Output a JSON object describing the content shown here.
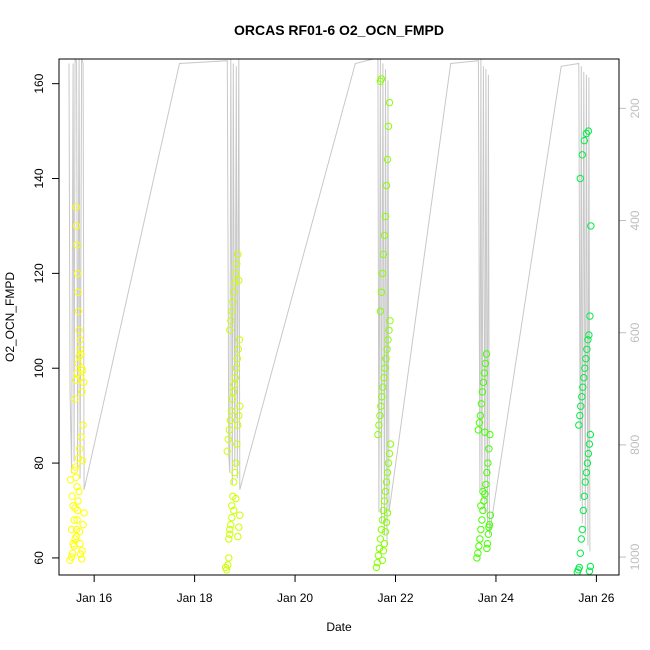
{
  "chart_data": {
    "type": "scatter",
    "title": "ORCAS RF01-6 O2_OCN_FMPD",
    "xlabel": "Date",
    "ylabel": "O2_OCN_FMPD",
    "x_ticks": [
      {
        "value": 16,
        "label": "Jan 16"
      },
      {
        "value": 18,
        "label": "Jan 18"
      },
      {
        "value": 20,
        "label": "Jan 20"
      },
      {
        "value": 22,
        "label": "Jan 22"
      },
      {
        "value": 24,
        "label": "Jan 24"
      },
      {
        "value": 26,
        "label": "Jan 26"
      }
    ],
    "y_ticks": [
      60,
      80,
      100,
      120,
      140,
      160
    ],
    "y2_ticks": [
      200,
      400,
      600,
      800,
      1000
    ],
    "xlim": [
      15.3,
      26.45
    ],
    "ylim": [
      56.4,
      165.2
    ],
    "y2lim": [
      1032,
      112
    ],
    "series": [
      {
        "color": "#ffff00",
        "x": [
          15.52,
          15.55,
          15.57,
          15.6,
          15.62,
          15.65,
          15.66,
          15.67,
          15.68,
          15.7,
          15.71,
          15.72,
          15.73,
          15.75,
          15.76,
          15.78,
          15.8,
          15.53,
          15.56,
          15.58,
          15.61,
          15.63,
          15.64,
          15.66,
          15.69,
          15.71,
          15.74,
          15.77,
          15.62,
          15.64,
          15.66,
          15.68,
          15.7,
          15.72,
          15.73,
          15.75,
          15.77,
          15.79,
          15.64,
          15.65,
          15.66,
          15.67,
          15.68,
          15.69,
          15.7,
          15.72,
          15.74,
          15.76,
          15.78,
          15.55,
          15.58,
          15.6,
          15.62,
          15.65
        ],
        "y": [
          59.5,
          60.2,
          61.0,
          62.5,
          64.0,
          66.0,
          68.0,
          70.0,
          72.0,
          74.0,
          65.5,
          63.0,
          60.8,
          59.8,
          61.5,
          67.0,
          69.5,
          76.5,
          73.0,
          71.0,
          78.5,
          79.2,
          77.0,
          75.0,
          81.0,
          83.0,
          85.5,
          80.5,
          93.5,
          97.5,
          99.0,
          101.0,
          102.5,
          104.0,
          98.0,
          100.0,
          99.5,
          97.0,
          134.0,
          130.0,
          126.0,
          120.0,
          116.0,
          112.0,
          108.0,
          106.0,
          103.0,
          95.0,
          88.0,
          66.0,
          63.0,
          68.0,
          70.5,
          64.5
        ]
      },
      {
        "color": "#ccff00",
        "x": [
          18.62,
          18.64,
          18.66,
          18.68,
          18.7,
          18.72,
          18.74,
          18.76,
          18.78,
          18.8,
          18.82,
          18.84,
          18.86,
          18.88,
          18.9,
          18.65,
          18.67,
          18.69,
          18.71,
          18.73,
          18.75,
          18.77,
          18.79,
          18.81,
          18.83,
          18.85,
          18.87,
          18.89,
          18.7,
          18.72,
          18.74,
          18.76,
          18.78,
          18.8,
          18.82,
          18.84,
          18.86,
          18.88,
          18.68,
          18.7,
          18.74,
          18.78,
          18.82,
          18.86,
          18.88,
          18.9
        ],
        "y": [
          58.0,
          57.5,
          58.5,
          60.0,
          65.0,
          67.0,
          71.0,
          73.0,
          76.0,
          78.0,
          80.0,
          84.0,
          88.0,
          90.0,
          92.0,
          82.5,
          85.0,
          87.0,
          89.0,
          91.0,
          93.5,
          95.0,
          96.5,
          98.0,
          100.0,
          102.0,
          104.0,
          106.0,
          108.0,
          110.0,
          112.0,
          114.0,
          116.0,
          118.0,
          120.0,
          122.0,
          124.0,
          118.5,
          64.0,
          66.0,
          68.5,
          70.0,
          72.5,
          64.5,
          66.5,
          69.0
        ]
      },
      {
        "color": "#88ff00",
        "x": [
          21.62,
          21.64,
          21.66,
          21.68,
          21.7,
          21.72,
          21.74,
          21.76,
          21.78,
          21.8,
          21.82,
          21.84,
          21.86,
          21.88,
          21.9,
          21.65,
          21.67,
          21.69,
          21.71,
          21.73,
          21.75,
          21.77,
          21.79,
          21.81,
          21.83,
          21.85,
          21.87,
          21.89,
          21.7,
          21.72,
          21.74,
          21.76,
          21.78,
          21.8,
          21.82,
          21.84,
          21.86,
          21.88,
          21.7,
          21.72,
          21.74,
          21.76,
          21.78,
          21.8,
          21.82,
          21.84
        ],
        "y": [
          58.0,
          59.0,
          60.5,
          62.0,
          64.0,
          66.0,
          68.0,
          70.0,
          72.0,
          74.0,
          76.0,
          78.0,
          80.0,
          82.0,
          84.0,
          86.0,
          88.0,
          90.0,
          92.0,
          94.0,
          96.0,
          98.0,
          100.0,
          102.0,
          104.0,
          106.0,
          108.0,
          110.0,
          112.0,
          116.0,
          120.0,
          124.0,
          128.0,
          132.0,
          138.5,
          144.0,
          151.0,
          156.0,
          160.5,
          161.0,
          59.5,
          61.5,
          63.0,
          65.5,
          67.5,
          69.5
        ]
      },
      {
        "color": "#44ff00",
        "x": [
          23.62,
          23.64,
          23.66,
          23.68,
          23.7,
          23.72,
          23.74,
          23.76,
          23.78,
          23.8,
          23.82,
          23.84,
          23.86,
          23.88,
          23.65,
          23.67,
          23.69,
          23.71,
          23.73,
          23.75,
          23.77,
          23.79,
          23.81,
          23.83,
          23.85,
          23.87,
          23.89,
          23.7,
          23.74,
          23.78,
          23.82,
          23.86
        ],
        "y": [
          60.0,
          61.0,
          62.5,
          64.0,
          66.0,
          68.0,
          70.0,
          72.0,
          73.5,
          75.5,
          78.0,
          80.0,
          83.0,
          86.0,
          87.0,
          88.5,
          90.0,
          92.5,
          95.0,
          97.0,
          99.0,
          101.0,
          103.0,
          63.0,
          65.0,
          67.0,
          69.0,
          71.0,
          74.0,
          86.5,
          62.0,
          66.5
        ]
      },
      {
        "color": "#00ee44",
        "x": [
          25.62,
          25.64,
          25.66,
          25.68,
          25.7,
          25.72,
          25.74,
          25.76,
          25.78,
          25.8,
          25.82,
          25.84,
          25.86,
          25.88,
          25.65,
          25.67,
          25.69,
          25.71,
          25.73,
          25.75,
          25.77,
          25.79,
          25.81,
          25.83,
          25.85,
          25.87,
          25.89,
          25.68,
          25.72,
          25.76,
          25.8,
          25.84,
          25.86,
          25.88
        ],
        "y": [
          57.0,
          57.5,
          58.0,
          61.0,
          64.0,
          66.0,
          70.0,
          73.0,
          76.0,
          78.0,
          80.0,
          82.0,
          84.0,
          86.0,
          88.0,
          90.0,
          92.0,
          94.0,
          96.0,
          98.0,
          100.0,
          102.0,
          104.0,
          106.0,
          107.0,
          111.0,
          130.0,
          140.0,
          145.0,
          148.0,
          149.5,
          150.0,
          57.2,
          58.2
        ]
      }
    ],
    "profile_depth": {
      "color": "#c8c8c8",
      "x": [
        15.5,
        15.52,
        15.55,
        15.58,
        15.6,
        15.62,
        15.65,
        15.67,
        15.7,
        15.72,
        15.75,
        15.78,
        15.8,
        17.7,
        18.65,
        18.68,
        18.7,
        18.72,
        18.75,
        18.77,
        18.8,
        18.83,
        18.85,
        18.88,
        18.9,
        21.2,
        21.65,
        21.67,
        21.7,
        21.72,
        21.75,
        21.78,
        21.8,
        21.83,
        21.85,
        21.87,
        23.1,
        23.65,
        23.68,
        23.7,
        23.72,
        23.75,
        23.78,
        23.8,
        23.83,
        23.85,
        23.87,
        25.3,
        25.65,
        25.68,
        25.7,
        25.72,
        25.75,
        25.78,
        25.8,
        25.83,
        25.85,
        25.87
      ],
      "depth": [
        120,
        700,
        850,
        120,
        830,
        100,
        120,
        840,
        100,
        860,
        110,
        120,
        880,
        120,
        115,
        820,
        850,
        110,
        870,
        120,
        840,
        125,
        860,
        110,
        880,
        120,
        110,
        920,
        105,
        940,
        120,
        960,
        130,
        980,
        150,
        920,
        120,
        115,
        880,
        110,
        900,
        125,
        920,
        130,
        940,
        140,
        960,
        125,
        120,
        900,
        125,
        940,
        135,
        960,
        140,
        980,
        145,
        990
      ]
    }
  }
}
